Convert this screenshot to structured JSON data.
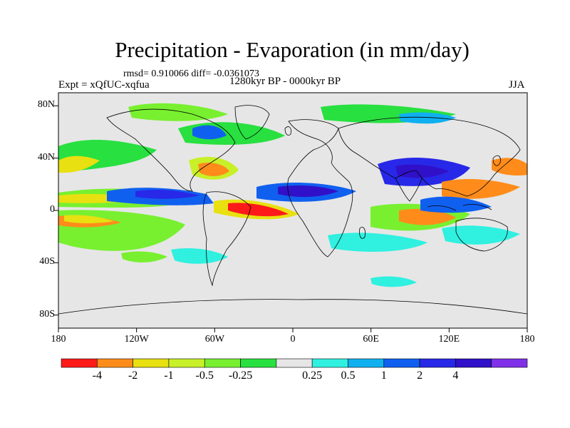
{
  "title": "Precipitation - Evaporation (in mm/day)",
  "stats": "rmsd= 0.910066 diff= -0.0361073",
  "experiment": "Expt = xQfUC-xqfua",
  "period": "1280kyr BP - 0000kyr BP",
  "season": "JJA",
  "lat_ticks": [
    {
      "label": "80N",
      "value": 80
    },
    {
      "label": "40N",
      "value": 40
    },
    {
      "label": "0",
      "value": 0
    },
    {
      "label": "40S",
      "value": -40
    },
    {
      "label": "80S",
      "value": -80
    }
  ],
  "lon_ticks": [
    {
      "label": "180",
      "value": -180
    },
    {
      "label": "120W",
      "value": -120
    },
    {
      "label": "60W",
      "value": -60
    },
    {
      "label": "0",
      "value": 0
    },
    {
      "label": "60E",
      "value": 60
    },
    {
      "label": "120E",
      "value": 120
    },
    {
      "label": "180",
      "value": 180
    }
  ],
  "colorbar": {
    "colors": [
      "#ff1a1a",
      "#ff8c1a",
      "#e8e010",
      "#c8f028",
      "#78f030",
      "#28e040",
      "#e6e6e6",
      "#30f0e0",
      "#10b0f0",
      "#1060f0",
      "#2828e8",
      "#3010c8",
      "#8030e8"
    ],
    "labels": [
      "-4",
      "-2",
      "-1",
      "-0.5",
      "-0.25",
      "0.25",
      "0.5",
      "1",
      "2",
      "4"
    ]
  },
  "colors": {
    "land_background": "#e6e6e6",
    "coastline": "#000000"
  }
}
